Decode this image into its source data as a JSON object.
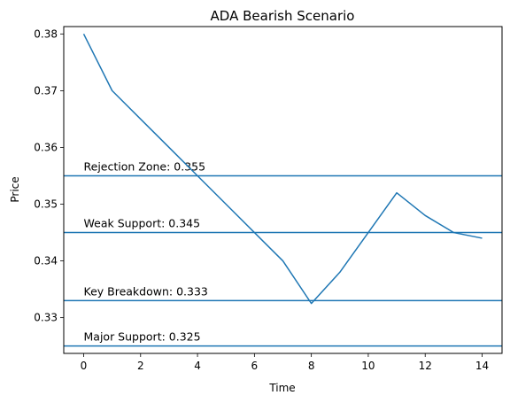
{
  "chart_data": {
    "type": "line",
    "title": "ADA Bearish Scenario",
    "xlabel": "Time",
    "ylabel": "Price",
    "xlim": [
      -0.7,
      14.7
    ],
    "ylim": [
      0.3237,
      0.3813
    ],
    "xticks": [
      0,
      2,
      4,
      6,
      8,
      10,
      12,
      14
    ],
    "yticks": [
      0.33,
      0.34,
      0.35,
      0.36,
      0.37,
      0.38
    ],
    "grid": false,
    "line_color": "#1f77b4",
    "series": [
      {
        "x": [
          0,
          1,
          2,
          3,
          4,
          5,
          6,
          7,
          8,
          9,
          10,
          11,
          12,
          13,
          14
        ],
        "values": [
          0.38,
          0.37,
          0.365,
          0.36,
          0.355,
          0.35,
          0.345,
          0.34,
          0.3325,
          0.338,
          0.345,
          0.352,
          0.348,
          0.345,
          0.344
        ]
      }
    ],
    "hlines": [
      {
        "y": 0.355,
        "label": "Rejection Zone: 0.355"
      },
      {
        "y": 0.345,
        "label": "Weak Support: 0.345"
      },
      {
        "y": 0.333,
        "label": "Key Breakdown: 0.333"
      },
      {
        "y": 0.325,
        "label": "Major Support: 0.325"
      }
    ]
  }
}
